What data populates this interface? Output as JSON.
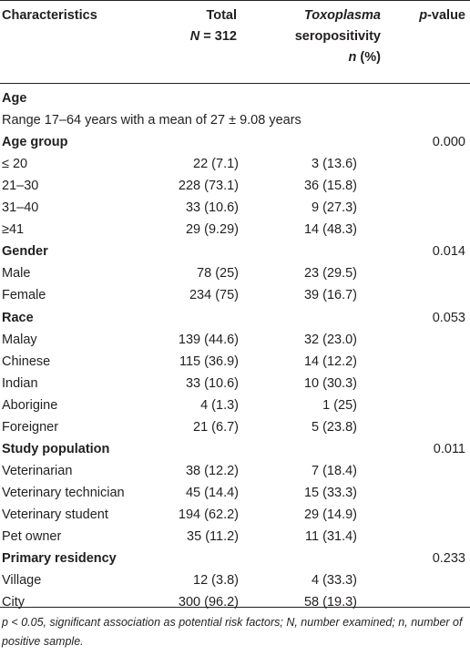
{
  "table": {
    "headers": {
      "characteristics": "Characteristics",
      "total_line1": "Total",
      "total_n_symbol": "N",
      "total_n_value": " = 312",
      "sero_line1": "Toxoplasma",
      "sero_line2": "seropositivity",
      "sero_n_symbol": "n",
      "sero_line3_rest": " (%)",
      "p_symbol": "p",
      "p_rest": "-value"
    },
    "rows": [
      {
        "type": "section",
        "label": "Age"
      },
      {
        "type": "note",
        "label": "Range 17–64 years with a mean of 27 ± 9.08 years"
      },
      {
        "type": "section",
        "label": "Age group",
        "p": "0.000"
      },
      {
        "type": "data",
        "label": "≤ 20",
        "total": "22 (7.1)",
        "sero": "3 (13.6)"
      },
      {
        "type": "data",
        "label": "21–30",
        "total": "228 (73.1)",
        "sero": "36 (15.8)"
      },
      {
        "type": "data",
        "label": "31–40",
        "total": "33 (10.6)",
        "sero": "9 (27.3)"
      },
      {
        "type": "data",
        "label": "≥41",
        "total": "29 (9.29)",
        "sero": "14 (48.3)"
      },
      {
        "type": "section",
        "label": "Gender",
        "p": "0.014"
      },
      {
        "type": "data",
        "label": "Male",
        "total": "78 (25)",
        "sero": "23 (29.5)"
      },
      {
        "type": "data",
        "label": "Female",
        "total": "234 (75)",
        "sero": "39 (16.7)"
      },
      {
        "type": "section",
        "label": "Race",
        "p": "0.053"
      },
      {
        "type": "data",
        "label": "Malay",
        "total": "139 (44.6)",
        "sero": "32 (23.0)"
      },
      {
        "type": "data",
        "label": "Chinese",
        "total": "115 (36.9)",
        "sero": "14 (12.2)"
      },
      {
        "type": "data",
        "label": "Indian",
        "total": "33 (10.6)",
        "sero": "10 (30.3)"
      },
      {
        "type": "data",
        "label": "Aborigine",
        "total": "4 (1.3)",
        "sero": "1 (25)"
      },
      {
        "type": "data",
        "label": "Foreigner",
        "total": "21 (6.7)",
        "sero": "5 (23.8)"
      },
      {
        "type": "section",
        "label": "Study population",
        "p": "0.011"
      },
      {
        "type": "data",
        "label": "Veterinarian",
        "total": "38 (12.2)",
        "sero": "7 (18.4)"
      },
      {
        "type": "data",
        "label": "Veterinary technician",
        "total": "45 (14.4)",
        "sero": "15 (33.3)"
      },
      {
        "type": "data",
        "label": "Veterinary student",
        "total": "194 (62.2)",
        "sero": "29 (14.9)"
      },
      {
        "type": "data",
        "label": "Pet owner",
        "total": "35 (11.2)",
        "sero": "11 (31.4)"
      },
      {
        "type": "section",
        "label": "Primary residency",
        "p": "0.233"
      },
      {
        "type": "data",
        "label": "Village",
        "total": "12 (3.8)",
        "sero": "4 (33.3)"
      },
      {
        "type": "data",
        "label": "City",
        "total": "300 (96.2)",
        "sero": "58 (19.3)"
      }
    ],
    "footnote": "p < 0.05, significant association as potential risk factors; N, number examined; n, number of positive sample."
  }
}
